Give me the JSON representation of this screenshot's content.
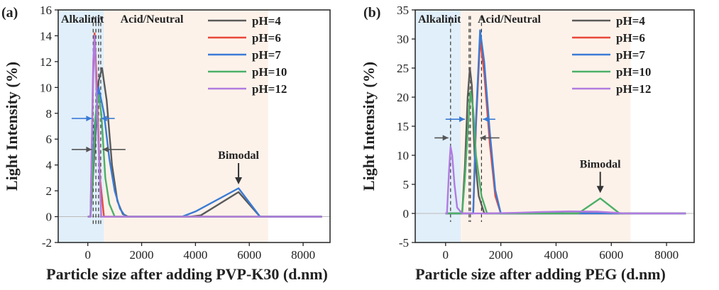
{
  "chart_data": [
    {
      "type": "line",
      "panel_label": "(a)",
      "xlabel": "Particle size after adding PVP-K30 (d.nm)",
      "ylabel": "Light Intensity (%)",
      "xlim": [
        -1100,
        9000
      ],
      "ylim": [
        -2,
        16
      ],
      "xticks": [
        0,
        2000,
        4000,
        6000,
        8000
      ],
      "yticks": [
        -2,
        0,
        2,
        4,
        6,
        8,
        10,
        12,
        14,
        16
      ],
      "regions": [
        {
          "label": "Alkalinity",
          "x0": -1100,
          "x1": 600,
          "color": "#e1effa"
        },
        {
          "label": "Acid/Neutral",
          "x0": 600,
          "x1": 6700,
          "color": "#fdf2ea"
        }
      ],
      "annotation": {
        "text": "Bimodal",
        "x": 5600,
        "y": 2.5
      },
      "dashed_lines_x": [
        200,
        300,
        400,
        480
      ],
      "arrows": [
        {
          "y": 7.6,
          "x_from": -600,
          "x_to": 150,
          "color": "#3a7bd5"
        },
        {
          "y": 7.6,
          "x_from": 1000,
          "x_to": 500,
          "color": "#3a7bd5"
        },
        {
          "y": 5.2,
          "x_from": -600,
          "x_to": 150,
          "color": "#555555"
        },
        {
          "y": 5.2,
          "x_from": 1400,
          "x_to": 550,
          "color": "#555555"
        }
      ],
      "series": [
        {
          "name": "pH=4",
          "color": "#5a5a5a",
          "x": [
            0,
            100,
            250,
            400,
            530,
            700,
            900,
            1100,
            1300,
            1500,
            3800,
            4200,
            5600,
            6400,
            8700
          ],
          "y": [
            0,
            0,
            5,
            10.5,
            11.5,
            9,
            4,
            1.2,
            0.2,
            0,
            0,
            0.1,
            1.9,
            0,
            0
          ]
        },
        {
          "name": "pH=6",
          "color": "#e8473a",
          "x": [
            0,
            100,
            200,
            250,
            320,
            450,
            600,
            8700
          ],
          "y": [
            0,
            0,
            11,
            14.2,
            11,
            3,
            0,
            0
          ]
        },
        {
          "name": "pH=7",
          "color": "#3a7bd5",
          "x": [
            0,
            100,
            250,
            400,
            600,
            800,
            1000,
            1200,
            1400,
            3500,
            4000,
            5600,
            6400,
            8700
          ],
          "y": [
            0,
            0,
            7,
            10,
            8,
            4.5,
            2,
            0.6,
            0,
            0,
            0.4,
            2.2,
            0,
            0
          ]
        },
        {
          "name": "pH=10",
          "color": "#4caf68",
          "x": [
            0,
            100,
            300,
            400,
            500,
            650,
            800,
            1000,
            8700
          ],
          "y": [
            0,
            0,
            8,
            9.4,
            8,
            3,
            1,
            0,
            0
          ]
        },
        {
          "name": "pH=12",
          "color": "#b07be0",
          "x": [
            0,
            100,
            200,
            250,
            350,
            500,
            8700
          ],
          "y": [
            0,
            0,
            12,
            14,
            8,
            0,
            0
          ]
        }
      ]
    },
    {
      "type": "line",
      "panel_label": "(b)",
      "xlabel": "Particle size after adding PEG (d.nm)",
      "ylabel": "Light Intensity (%)",
      "xlim": [
        -1100,
        9000
      ],
      "ylim": [
        -5,
        35
      ],
      "xticks": [
        0,
        2000,
        4000,
        6000,
        8000
      ],
      "yticks": [
        -5,
        0,
        5,
        10,
        15,
        20,
        25,
        30,
        35
      ],
      "regions": [
        {
          "label": "Alkalinity",
          "x0": -1100,
          "x1": 550,
          "color": "#e1effa"
        },
        {
          "label": "Acid/Neutral",
          "x0": 550,
          "x1": 6700,
          "color": "#fdf2ea"
        }
      ],
      "annotation": {
        "text": "Bimodal",
        "x": 5600,
        "y": 3.5
      },
      "dashed_lines_x": [
        180,
        850,
        900,
        1300
      ],
      "arrows": [
        {
          "y": 13,
          "x_from": -400,
          "x_to": 100,
          "color": "#555555"
        },
        {
          "y": 13,
          "x_from": 1950,
          "x_to": 1250,
          "color": "#555555"
        },
        {
          "y": 16.2,
          "x_from": 0,
          "x_to": 700,
          "color": "#3a7bd5"
        },
        {
          "y": 16.2,
          "x_from": 1800,
          "x_to": 1350,
          "color": "#3a7bd5"
        }
      ],
      "series": [
        {
          "name": "pH=4",
          "color": "#5a5a5a",
          "x": [
            0,
            600,
            700,
            800,
            880,
            950,
            1050,
            1200,
            1400,
            8700
          ],
          "y": [
            0,
            0,
            8,
            20,
            25,
            22,
            10,
            3,
            0,
            0
          ]
        },
        {
          "name": "pH=6",
          "color": "#e8473a",
          "x": [
            0,
            1000,
            1100,
            1250,
            1400,
            1600,
            1800,
            2000,
            8700
          ],
          "y": [
            0,
            0,
            15,
            30,
            24,
            12,
            3,
            0,
            0
          ]
        },
        {
          "name": "pH=7",
          "color": "#3a7bd5",
          "x": [
            0,
            1000,
            1100,
            1250,
            1400,
            1600,
            1800,
            2000,
            8700
          ],
          "y": [
            0,
            0,
            16,
            31.5,
            26,
            14,
            4,
            0,
            0
          ]
        },
        {
          "name": "pH=10",
          "color": "#4caf68",
          "x": [
            0,
            600,
            700,
            800,
            900,
            1000,
            1100,
            1300,
            1500,
            4800,
            5600,
            6300,
            8700
          ],
          "y": [
            0,
            0,
            6,
            14,
            21,
            18,
            10,
            3,
            0,
            0,
            2.6,
            0,
            0
          ]
        },
        {
          "name": "pH=12",
          "color": "#b07be0",
          "x": [
            0,
            50,
            120,
            180,
            240,
            320,
            420,
            600,
            1500,
            2500,
            3500,
            4500,
            5500,
            6500,
            8700
          ],
          "y": [
            0,
            0,
            7,
            11.5,
            10,
            5,
            1,
            0,
            0,
            0.1,
            0.25,
            0.35,
            0.3,
            0,
            0
          ]
        }
      ]
    }
  ]
}
